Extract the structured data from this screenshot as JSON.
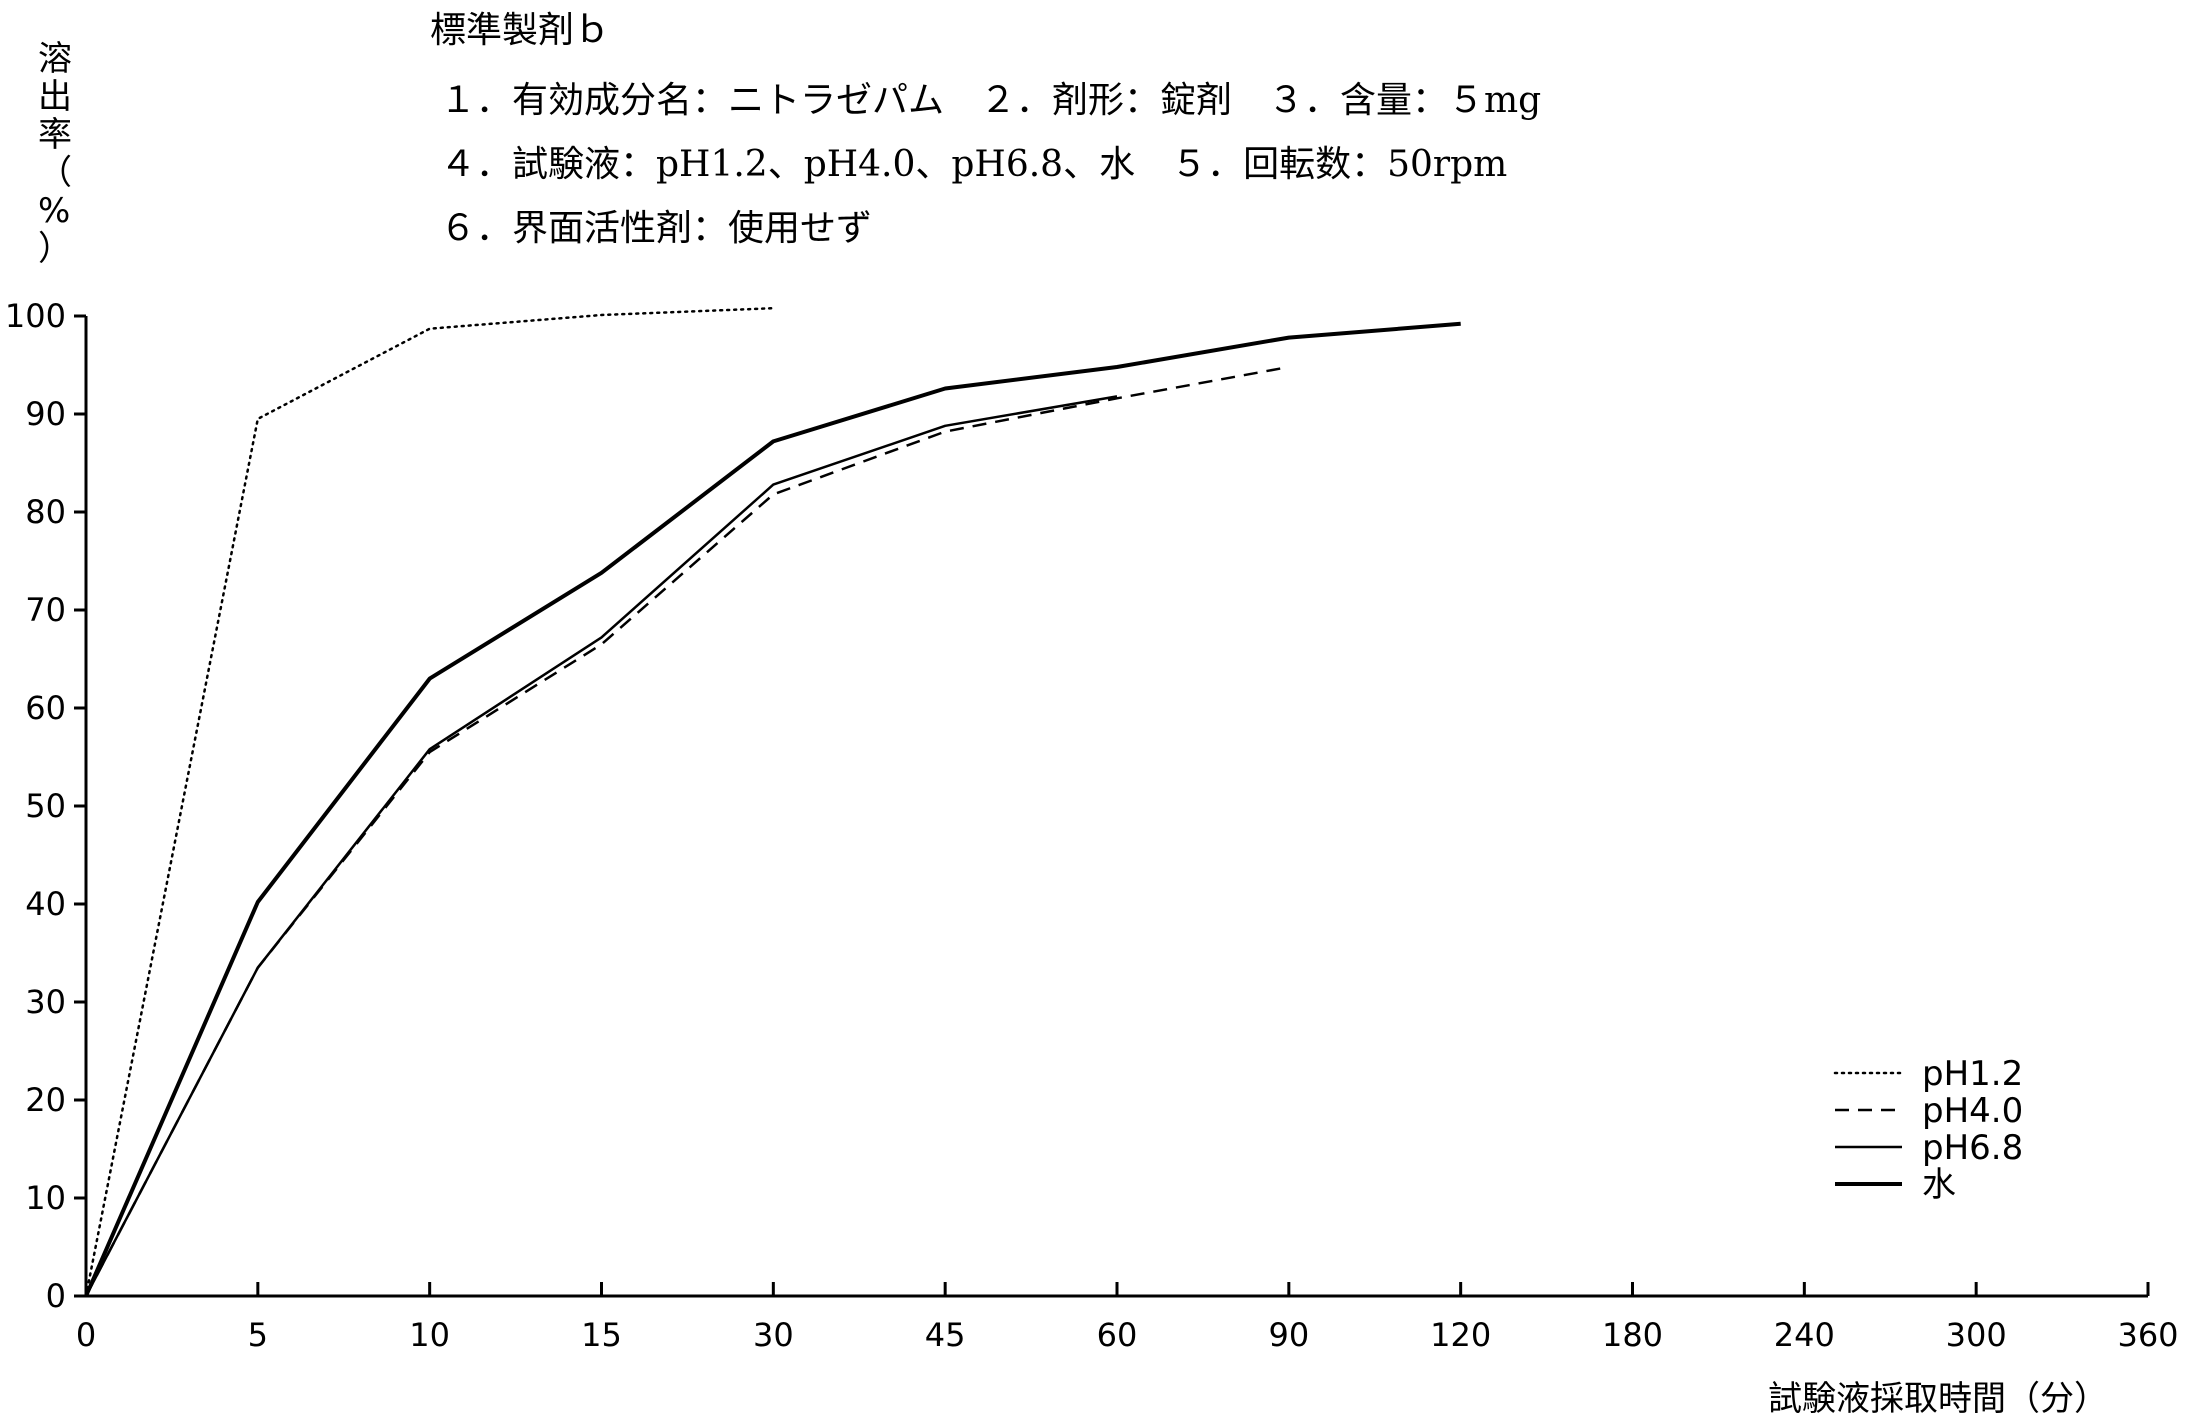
{
  "chart_data": {
    "type": "line",
    "header": {
      "title": "標準製剤ｂ",
      "lines": [
        "１．有効成分名：ニトラゼパム　２．剤形：錠剤　３．含量：５mg",
        "４．試験液：pH1.2、pH4.0、pH6.8、水　５．回転数：50rpm",
        "６．界面活性剤：使用せず"
      ]
    },
    "ylabel": "溶出率（%）",
    "xlabel": "試験液採取時間（分）",
    "x_ticks": [
      "0",
      "5",
      "10",
      "15",
      "30",
      "45",
      "60",
      "90",
      "120",
      "180",
      "240",
      "300",
      "360"
    ],
    "y_ticks": [
      "0",
      "10",
      "20",
      "30",
      "40",
      "50",
      "60",
      "70",
      "80",
      "90",
      "100"
    ],
    "ylim": [
      0,
      100
    ],
    "grid": false,
    "legend_position": "bottom-right",
    "series": [
      {
        "name": "pH1.2",
        "style": "dotted",
        "x": [
          0,
          5,
          10,
          15,
          30
        ],
        "y": [
          0,
          89.5,
          98.7,
          100.1,
          100.8
        ]
      },
      {
        "name": "pH4.0",
        "style": "dashed",
        "x": [
          0,
          5,
          10,
          15,
          30,
          45,
          60,
          90
        ],
        "y": [
          0,
          33.5,
          55.5,
          66.5,
          81.8,
          88.2,
          91.6,
          94.8
        ]
      },
      {
        "name": "pH6.8",
        "style": "solid-thin",
        "x": [
          0,
          5,
          10,
          15,
          30,
          45,
          60
        ],
        "y": [
          0,
          33.5,
          55.8,
          67.2,
          82.8,
          88.8,
          91.8
        ]
      },
      {
        "name": "水",
        "style": "solid-thick",
        "x": [
          0,
          5,
          10,
          15,
          30,
          45,
          60,
          90,
          120
        ],
        "y": [
          0,
          40.2,
          63,
          73.8,
          87.2,
          92.6,
          94.8,
          97.8,
          99.2
        ]
      }
    ]
  }
}
